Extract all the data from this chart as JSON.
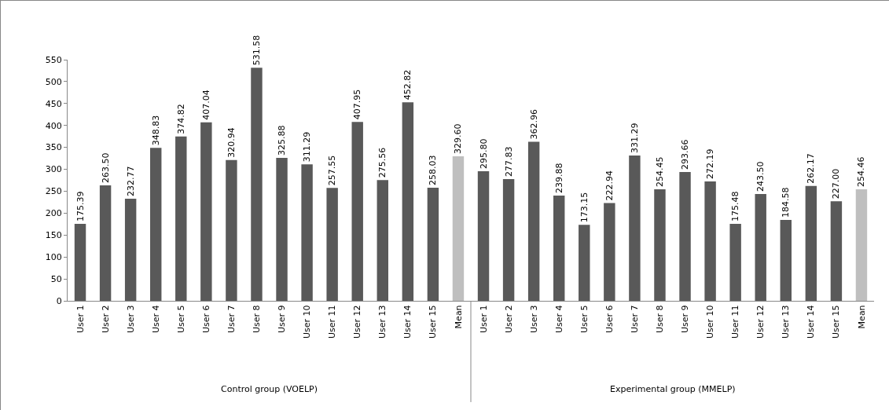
{
  "chart_data": {
    "type": "bar",
    "categories": [
      "User 1",
      "User 2",
      "User 3",
      "User 4",
      "User 5",
      "User 6",
      "User 7",
      "User 8",
      "User 9",
      "User 10",
      "User 11",
      "User 12",
      "User 13",
      "User 14",
      "User 15",
      "Mean",
      "User 1",
      "User 2",
      "User 3",
      "User 4",
      "User 5",
      "User 6",
      "User 7",
      "User 8",
      "User 9",
      "User 10",
      "User 11",
      "User 12",
      "User 13",
      "User 14",
      "User 15",
      "Mean"
    ],
    "values": [
      175.39,
      263.5,
      232.77,
      348.83,
      374.82,
      407.04,
      320.94,
      531.58,
      325.88,
      311.29,
      257.55,
      407.95,
      275.56,
      452.82,
      258.03,
      329.6,
      295.8,
      277.83,
      362.96,
      239.88,
      173.15,
      222.94,
      331.29,
      254.45,
      293.66,
      272.19,
      175.48,
      243.5,
      184.58,
      262.17,
      227.0,
      254.46
    ],
    "value_labels": [
      "175.39",
      "263.50",
      "232.77",
      "348.83",
      "374.82",
      "407.04",
      "320.94",
      "531.58",
      "325.88",
      "311.29",
      "257.55",
      "407.95",
      "275.56",
      "452.82",
      "258.03",
      "329.60",
      "295.80",
      "277.83",
      "362.96",
      "239.88",
      "173.15",
      "222.94",
      "331.29",
      "254.45",
      "293.66",
      "272.19",
      "175.48",
      "243.50",
      "184.58",
      "262.17",
      "227.00",
      "254.46"
    ],
    "colors": [
      "#595959",
      "#595959",
      "#595959",
      "#595959",
      "#595959",
      "#595959",
      "#595959",
      "#595959",
      "#595959",
      "#595959",
      "#595959",
      "#595959",
      "#595959",
      "#595959",
      "#595959",
      "#bfbfbf",
      "#595959",
      "#595959",
      "#595959",
      "#595959",
      "#595959",
      "#595959",
      "#595959",
      "#595959",
      "#595959",
      "#595959",
      "#595959",
      "#595959",
      "#595959",
      "#595959",
      "#595959",
      "#bfbfbf"
    ],
    "ylim": [
      0,
      550
    ],
    "yticks": [
      0,
      50,
      100,
      150,
      200,
      250,
      300,
      350,
      400,
      450,
      500,
      550
    ],
    "annotations": [
      "Control group (VOELP)",
      "Experimental group (MMELP)"
    ],
    "grid": false
  }
}
